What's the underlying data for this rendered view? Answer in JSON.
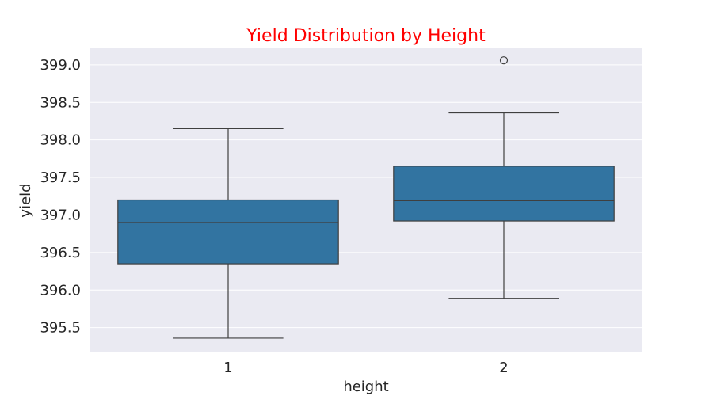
{
  "chart_data": {
    "type": "box",
    "title": "Yield Distribution by Height",
    "title_color": "#ff0000",
    "xlabel": "height",
    "ylabel": "yield",
    "categories": [
      "1",
      "2"
    ],
    "ylim": [
      395.18,
      399.22
    ],
    "yticks": [
      395.5,
      396.0,
      396.5,
      397.0,
      397.5,
      398.0,
      398.5,
      399.0
    ],
    "ytick_labels": [
      "395.5",
      "396.0",
      "396.5",
      "397.0",
      "397.5",
      "398.0",
      "398.5",
      "399.0"
    ],
    "grid": true,
    "background": "#eaeaf2",
    "box_color": "#3274a1",
    "line_color": "#3f3f3f",
    "boxes": [
      {
        "category": "1",
        "whisker_low": 395.36,
        "q1": 396.35,
        "median": 396.9,
        "q3": 397.2,
        "whisker_high": 398.15,
        "outliers": []
      },
      {
        "category": "2",
        "whisker_low": 395.89,
        "q1": 396.92,
        "median": 397.19,
        "q3": 397.65,
        "whisker_high": 398.36,
        "outliers": [
          399.06
        ]
      }
    ]
  }
}
